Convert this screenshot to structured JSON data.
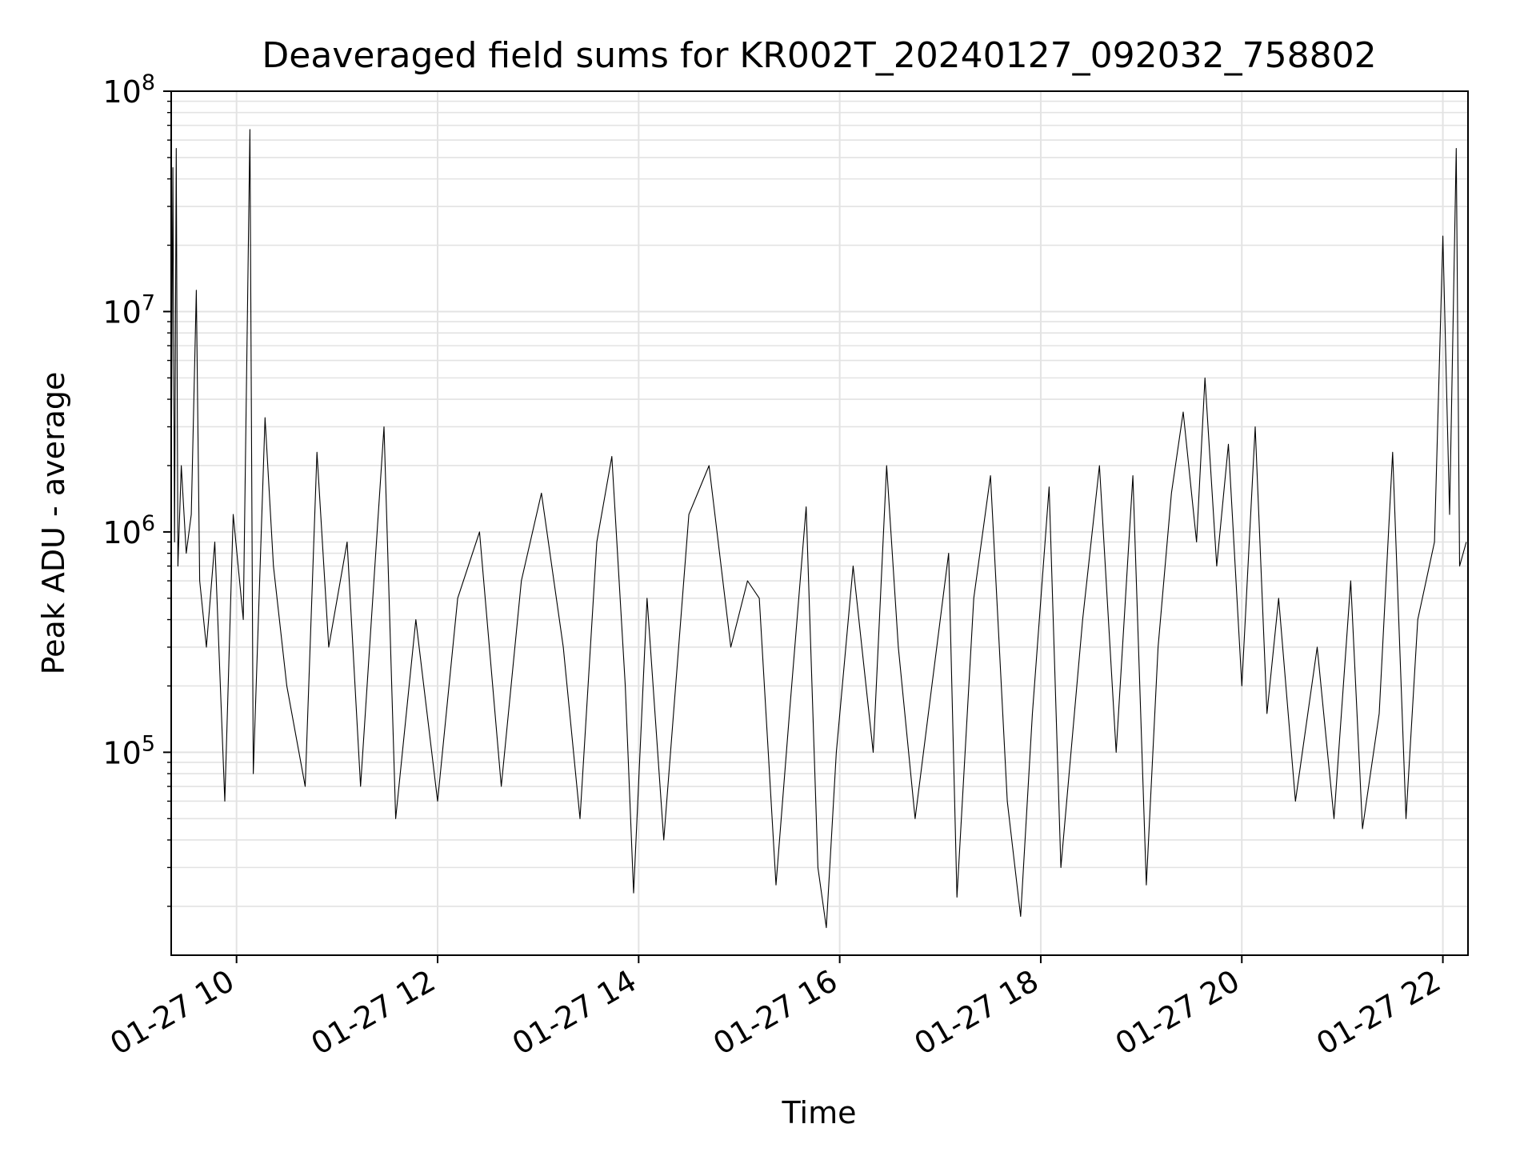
{
  "chart_data": {
    "type": "line",
    "title": "Deaveraged field sums for KR002T_20240127_092032_758802",
    "xlabel": "Time",
    "ylabel": "Peak ADU - average",
    "x_axis": {
      "type": "datetime",
      "range": [
        "2024-01-27T09:21:00",
        "2024-01-27T22:15:00"
      ],
      "ticks": [
        {
          "value": "2024-01-27T10:00",
          "label": "01-27 10"
        },
        {
          "value": "2024-01-27T12:00",
          "label": "01-27 12"
        },
        {
          "value": "2024-01-27T14:00",
          "label": "01-27 14"
        },
        {
          "value": "2024-01-27T16:00",
          "label": "01-27 16"
        },
        {
          "value": "2024-01-27T18:00",
          "label": "01-27 18"
        },
        {
          "value": "2024-01-27T20:00",
          "label": "01-27 20"
        },
        {
          "value": "2024-01-27T22:00",
          "label": "01-27 22"
        }
      ]
    },
    "y_axis": {
      "scale": "log",
      "range": [
        12000,
        100000000
      ],
      "ticks": [
        {
          "value": 100000,
          "base": "10",
          "exp": "5"
        },
        {
          "value": 1000000,
          "base": "10",
          "exp": "6"
        },
        {
          "value": 10000000,
          "base": "10",
          "exp": "7"
        },
        {
          "value": 100000000,
          "base": "10",
          "exp": "8"
        }
      ]
    },
    "grid": true,
    "line_color": "#000000",
    "series": [
      {
        "values": [
          [
            "2024-01-27T09:21",
            1500000
          ],
          [
            "2024-01-27T09:22",
            45000000
          ],
          [
            "2024-01-27T09:23",
            900000
          ],
          [
            "2024-01-27T09:24",
            55000000
          ],
          [
            "2024-01-27T09:25",
            700000
          ],
          [
            "2024-01-27T09:27",
            2000000
          ],
          [
            "2024-01-27T09:30",
            800000
          ],
          [
            "2024-01-27T09:33",
            1200000
          ],
          [
            "2024-01-27T09:36",
            12500000
          ],
          [
            "2024-01-27T09:38",
            600000
          ],
          [
            "2024-01-27T09:42",
            300000
          ],
          [
            "2024-01-27T09:47",
            900000
          ],
          [
            "2024-01-27T09:53",
            60000
          ],
          [
            "2024-01-27T09:58",
            1200000
          ],
          [
            "2024-01-27T10:04",
            400000
          ],
          [
            "2024-01-27T10:08",
            67000000
          ],
          [
            "2024-01-27T10:10",
            80000
          ],
          [
            "2024-01-27T10:17",
            3300000
          ],
          [
            "2024-01-27T10:22",
            700000
          ],
          [
            "2024-01-27T10:30",
            200000
          ],
          [
            "2024-01-27T10:41",
            70000
          ],
          [
            "2024-01-27T10:48",
            2300000
          ],
          [
            "2024-01-27T10:55",
            300000
          ],
          [
            "2024-01-27T11:06",
            900000
          ],
          [
            "2024-01-27T11:14",
            70000
          ],
          [
            "2024-01-27T11:22",
            600000
          ],
          [
            "2024-01-27T11:28",
            3000000
          ],
          [
            "2024-01-27T11:35",
            50000
          ],
          [
            "2024-01-27T11:47",
            400000
          ],
          [
            "2024-01-27T12:00",
            60000
          ],
          [
            "2024-01-27T12:12",
            500000
          ],
          [
            "2024-01-27T12:25",
            1000000
          ],
          [
            "2024-01-27T12:38",
            70000
          ],
          [
            "2024-01-27T12:50",
            600000
          ],
          [
            "2024-01-27T13:02",
            1500000
          ],
          [
            "2024-01-27T13:15",
            300000
          ],
          [
            "2024-01-27T13:25",
            50000
          ],
          [
            "2024-01-27T13:35",
            900000
          ],
          [
            "2024-01-27T13:44",
            2200000
          ],
          [
            "2024-01-27T13:52",
            200000
          ],
          [
            "2024-01-27T13:57",
            23000
          ],
          [
            "2024-01-27T14:05",
            500000
          ],
          [
            "2024-01-27T14:15",
            40000
          ],
          [
            "2024-01-27T14:30",
            1200000
          ],
          [
            "2024-01-27T14:42",
            2000000
          ],
          [
            "2024-01-27T14:55",
            300000
          ],
          [
            "2024-01-27T15:05",
            600000
          ],
          [
            "2024-01-27T15:12",
            500000
          ],
          [
            "2024-01-27T15:22",
            25000
          ],
          [
            "2024-01-27T15:30",
            150000
          ],
          [
            "2024-01-27T15:40",
            1300000
          ],
          [
            "2024-01-27T15:47",
            30000
          ],
          [
            "2024-01-27T15:52",
            16000
          ],
          [
            "2024-01-27T15:58",
            100000
          ],
          [
            "2024-01-27T16:08",
            700000
          ],
          [
            "2024-01-27T16:20",
            100000
          ],
          [
            "2024-01-27T16:28",
            2000000
          ],
          [
            "2024-01-27T16:35",
            300000
          ],
          [
            "2024-01-27T16:45",
            50000
          ],
          [
            "2024-01-27T16:55",
            200000
          ],
          [
            "2024-01-27T17:05",
            800000
          ],
          [
            "2024-01-27T17:10",
            22000
          ],
          [
            "2024-01-27T17:20",
            500000
          ],
          [
            "2024-01-27T17:30",
            1800000
          ],
          [
            "2024-01-27T17:40",
            60000
          ],
          [
            "2024-01-27T17:48",
            18000
          ],
          [
            "2024-01-27T17:55",
            150000
          ],
          [
            "2024-01-27T18:05",
            1600000
          ],
          [
            "2024-01-27T18:12",
            30000
          ],
          [
            "2024-01-27T18:25",
            400000
          ],
          [
            "2024-01-27T18:35",
            2000000
          ],
          [
            "2024-01-27T18:45",
            100000
          ],
          [
            "2024-01-27T18:55",
            1800000
          ],
          [
            "2024-01-27T19:03",
            25000
          ],
          [
            "2024-01-27T19:10",
            300000
          ],
          [
            "2024-01-27T19:18",
            1500000
          ],
          [
            "2024-01-27T19:25",
            3500000
          ],
          [
            "2024-01-27T19:33",
            900000
          ],
          [
            "2024-01-27T19:38",
            5000000
          ],
          [
            "2024-01-27T19:45",
            700000
          ],
          [
            "2024-01-27T19:52",
            2500000
          ],
          [
            "2024-01-27T20:00",
            200000
          ],
          [
            "2024-01-27T20:08",
            3000000
          ],
          [
            "2024-01-27T20:15",
            150000
          ],
          [
            "2024-01-27T20:22",
            500000
          ],
          [
            "2024-01-27T20:32",
            60000
          ],
          [
            "2024-01-27T20:45",
            300000
          ],
          [
            "2024-01-27T20:55",
            50000
          ],
          [
            "2024-01-27T21:05",
            600000
          ],
          [
            "2024-01-27T21:12",
            45000
          ],
          [
            "2024-01-27T21:22",
            150000
          ],
          [
            "2024-01-27T21:30",
            2300000
          ],
          [
            "2024-01-27T21:38",
            50000
          ],
          [
            "2024-01-27T21:45",
            400000
          ],
          [
            "2024-01-27T21:55",
            900000
          ],
          [
            "2024-01-27T22:00",
            22000000
          ],
          [
            "2024-01-27T22:04",
            1200000
          ],
          [
            "2024-01-27T22:08",
            55000000
          ],
          [
            "2024-01-27T22:10",
            700000
          ],
          [
            "2024-01-27T22:14",
            900000
          ]
        ]
      }
    ]
  }
}
